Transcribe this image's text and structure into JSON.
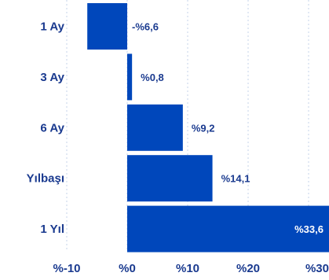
{
  "chart_data": {
    "type": "bar",
    "orientation": "horizontal",
    "categories": [
      "1 Ay",
      "3 Ay",
      "6 Ay",
      "Yılbaşı",
      "1 Yıl"
    ],
    "values": [
      -6.6,
      0.8,
      9.2,
      14.1,
      33.6
    ],
    "data_labels": [
      "-%6,6",
      "%0,8",
      "%9,2",
      "%14,1",
      "%33,6"
    ],
    "xlim": [
      -10,
      30
    ],
    "xticks": [
      -10,
      0,
      10,
      20,
      30
    ],
    "xtick_labels": [
      "%-10",
      "%0",
      "%10",
      "%20",
      "%30"
    ],
    "grid": "vertical-dashed",
    "legend": "none",
    "colors": {
      "bar": "#0047bb",
      "text": "#1a3a8f",
      "grid": "#c6d3ea"
    }
  }
}
